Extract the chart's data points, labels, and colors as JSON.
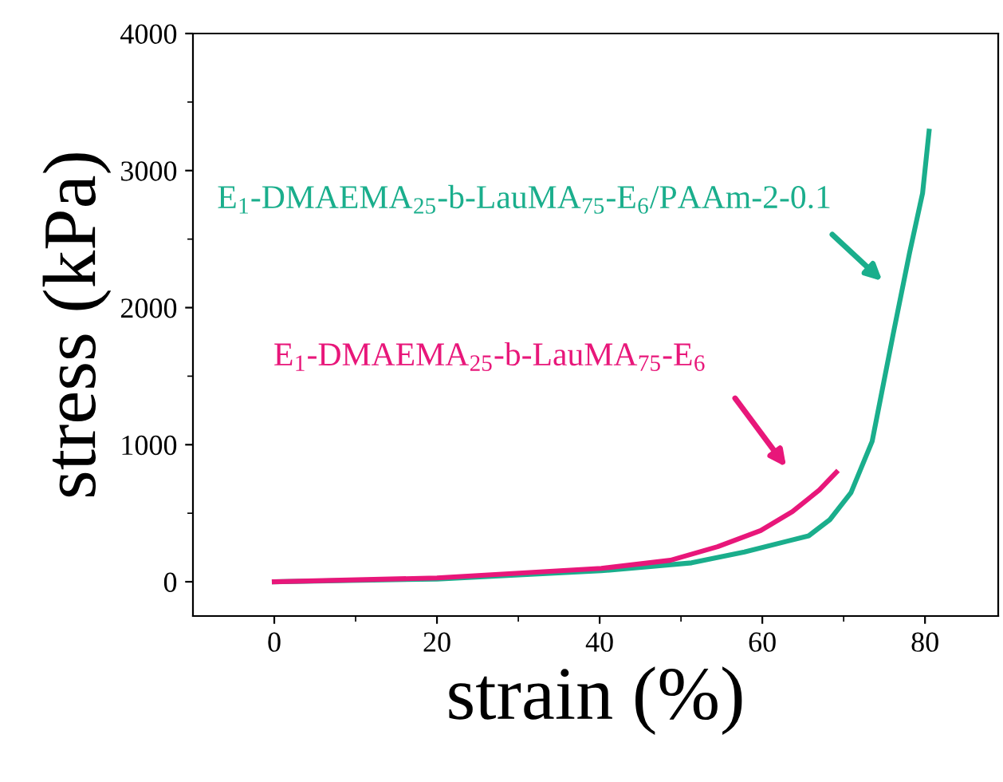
{
  "chart_data": {
    "type": "line",
    "xlabel": "strain (%)",
    "ylabel": "stress (kPa)",
    "xlim": [
      -10,
      89
    ],
    "ylim": [
      -250,
      4000
    ],
    "xticks": [
      0,
      20,
      40,
      60,
      80
    ],
    "yticks": [
      0,
      1000,
      2000,
      3000,
      4000
    ],
    "grid": false,
    "legend": false,
    "marker": "none",
    "line_style": "solid",
    "series": [
      {
        "name": "E$_{1}$-DMAEMA$_{25}$-b-LauMA$_{75}$-E$_{6}$/PAAm-2-0.1",
        "color": "#1aae8c",
        "x": [
          0,
          20,
          40.2,
          51.3,
          57.8,
          63,
          65.7,
          68.3,
          70.9,
          73.5,
          76.1,
          78.1,
          79.7,
          80.5
        ],
        "values": [
          0,
          20,
          80,
          138,
          217,
          295,
          335,
          453,
          650,
          1024,
          1811,
          2400,
          2835,
          3287
        ]
      },
      {
        "name": "E$_{1}$-DMAEMA$_{25}$-b-LauMA$_{75}$-E$_{6}$",
        "color": "#e8177a",
        "x": [
          0,
          20,
          40.2,
          48.7,
          54.5,
          59.8,
          63.7,
          67,
          69.1
        ],
        "values": [
          0,
          28,
          98,
          157,
          256,
          374,
          512,
          669,
          799
        ]
      }
    ]
  }
}
